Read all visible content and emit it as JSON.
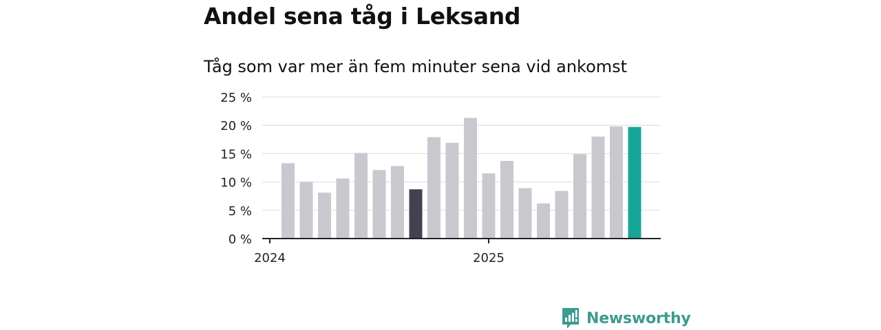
{
  "title": "Andel sena tåg i Leksand",
  "subtitle": "Tåg som var mer än fem minuter sena vid ankomst",
  "chart_data": {
    "type": "bar",
    "title": "Andel sena tåg i Leksand",
    "subtitle": "Tåg som var mer än fem minuter sena vid ankomst",
    "x_tick_labels": [
      "2024",
      "2025"
    ],
    "y_ticks": [
      "0 %",
      "5 %",
      "10 %",
      "15 %",
      "20 %",
      "25 %"
    ],
    "ylim": [
      0,
      25
    ],
    "grid": true,
    "values": [
      13.3,
      10.0,
      8.1,
      10.6,
      15.1,
      12.1,
      12.8,
      8.7,
      17.9,
      16.9,
      21.3,
      11.5,
      13.7,
      8.9,
      6.2,
      8.4,
      14.9,
      18.0,
      19.8,
      19.7
    ],
    "highlight_dark_index": 7,
    "highlight_teal_index": 19,
    "colors": {
      "bar": "#c9c8cf",
      "bar_dark": "#434350",
      "bar_highlight": "#16a596",
      "grid": "#dcdcdc",
      "axis": "#222222"
    }
  },
  "brand": {
    "name": "Newsworthy",
    "icon": "newsworthy-logo-icon",
    "color": "#3c9b8e"
  }
}
